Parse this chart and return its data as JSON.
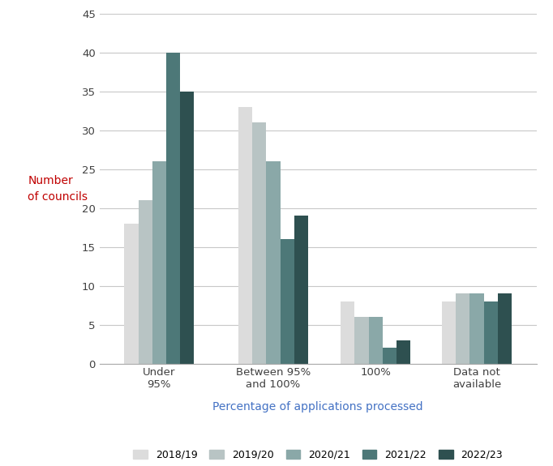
{
  "categories": [
    "Under\n95%",
    "Between 95%\nand 100%",
    "100%",
    "Data not\navailable"
  ],
  "series": {
    "2018/19": [
      18,
      33,
      8,
      8
    ],
    "2019/20": [
      21,
      31,
      6,
      9
    ],
    "2020/21": [
      26,
      26,
      6,
      9
    ],
    "2021/22": [
      40,
      16,
      2,
      8
    ],
    "2022/23": [
      35,
      19,
      3,
      9
    ]
  },
  "series_order": [
    "2018/19",
    "2019/20",
    "2020/21",
    "2021/22",
    "2022/23"
  ],
  "colors": {
    "2018/19": "#dcdcdc",
    "2019/20": "#b8c4c4",
    "2020/21": "#8aa8a8",
    "2021/22": "#4d7878",
    "2022/23": "#2e5050"
  },
  "ylabel": "Number\nof councils",
  "xlabel": "Percentage of applications processed",
  "ylim": [
    0,
    45
  ],
  "yticks": [
    0,
    5,
    10,
    15,
    20,
    25,
    30,
    35,
    40,
    45
  ],
  "ylabel_color": "#c00000",
  "xlabel_color": "#4472c4",
  "background_color": "#ffffff",
  "grid_color": "#c8c8c8"
}
